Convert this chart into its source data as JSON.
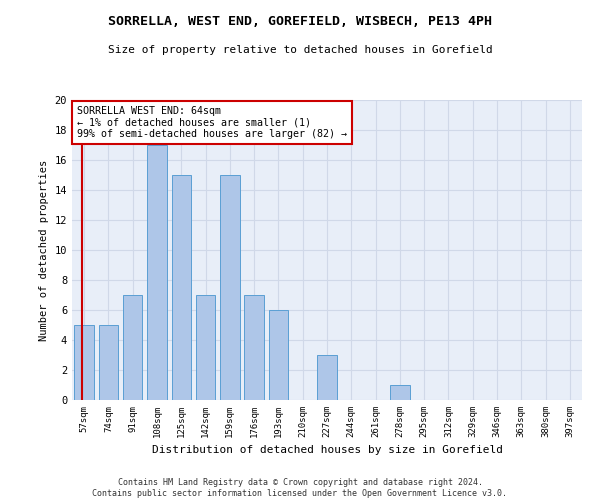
{
  "title": "SORRELLA, WEST END, GOREFIELD, WISBECH, PE13 4PH",
  "subtitle": "Size of property relative to detached houses in Gorefield",
  "xlabel": "Distribution of detached houses by size in Gorefield",
  "ylabel": "Number of detached properties",
  "footnote": "Contains HM Land Registry data © Crown copyright and database right 2024.\nContains public sector information licensed under the Open Government Licence v3.0.",
  "bar_labels": [
    "57sqm",
    "74sqm",
    "91sqm",
    "108sqm",
    "125sqm",
    "142sqm",
    "159sqm",
    "176sqm",
    "193sqm",
    "210sqm",
    "227sqm",
    "244sqm",
    "261sqm",
    "278sqm",
    "295sqm",
    "312sqm",
    "329sqm",
    "346sqm",
    "363sqm",
    "380sqm",
    "397sqm"
  ],
  "bar_values": [
    5,
    5,
    7,
    17,
    15,
    7,
    15,
    7,
    6,
    0,
    3,
    0,
    0,
    1,
    0,
    0,
    0,
    0,
    0,
    0,
    0
  ],
  "bar_color": "#aec6e8",
  "bar_edge_color": "#5a9fd4",
  "ylim": [
    0,
    20
  ],
  "yticks": [
    0,
    2,
    4,
    6,
    8,
    10,
    12,
    14,
    16,
    18,
    20
  ],
  "property_size": 64,
  "property_label": "SORRELLA WEST END: 64sqm",
  "annotation_line1": "← 1% of detached houses are smaller (1)",
  "annotation_line2": "99% of semi-detached houses are larger (82) →",
  "annotation_box_color": "#ffffff",
  "annotation_box_edge_color": "#cc0000",
  "red_line_color": "#cc0000",
  "grid_color": "#d0d8e8",
  "background_color": "#e8eef8"
}
